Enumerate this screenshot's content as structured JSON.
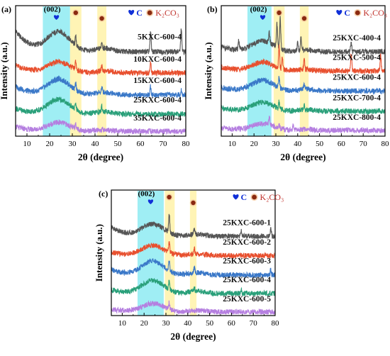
{
  "figure": {
    "legend_c_label": "C",
    "legend_k2co3_label": "K₂CO₃",
    "marker_002_label": "(002)"
  },
  "chart_data": [
    {
      "panel_label": "(a)",
      "type": "line",
      "xlabel": "2θ (degree)",
      "ylabel": "Intensity (a.u.)",
      "xlim": [
        5,
        80
      ],
      "xticks": [
        10,
        20,
        30,
        40,
        50,
        60,
        70,
        80
      ],
      "yticks_shown": false,
      "highlight_bands": [
        {
          "x": [
            17,
            29
          ],
          "color": "#7fe8f0",
          "phase": "C"
        },
        {
          "x": [
            29,
            34
          ],
          "color": "#fff2a8",
          "phase": "K2CO3"
        },
        {
          "x": [
            41,
            45
          ],
          "color": "#fff2a8",
          "phase": "K2CO3"
        }
      ],
      "phase_markers": [
        {
          "x": 23,
          "phase": "C",
          "label": "(002)"
        },
        {
          "x": 31.5,
          "phase": "K2CO3"
        },
        {
          "x": 43,
          "phase": "K2CO3"
        }
      ],
      "series": [
        {
          "name": "5KXC-600-4",
          "color": "#555555",
          "offset": 4.4,
          "hump": 1.0,
          "slope": 1.1,
          "peaks": [
            {
              "x": 31.5,
              "h": 0.45
            },
            {
              "x": 43,
              "h": 0.35
            },
            {
              "x": 64.5,
              "h": 1.0
            },
            {
              "x": 78,
              "h": 1.15
            }
          ]
        },
        {
          "name": "10KXC-600-4",
          "color": "#e8502f",
          "offset": 3.3,
          "hump": 0.55,
          "slope": 0.4,
          "peaks": [
            {
              "x": 31.5,
              "h": 0.4
            },
            {
              "x": 43,
              "h": 0.3
            },
            {
              "x": 64.5,
              "h": 0.5
            }
          ]
        },
        {
          "name": "15KXC-600-4",
          "color": "#3a78c8",
          "offset": 2.15,
          "hump": 0.8,
          "slope": 0.45,
          "peaks": [
            {
              "x": 31.5,
              "h": 0.3
            },
            {
              "x": 43,
              "h": 0.25
            },
            {
              "x": 64.5,
              "h": 0.45
            },
            {
              "x": 78,
              "h": 0.3
            }
          ]
        },
        {
          "name": "25KXC-600-4",
          "color": "#2aa07a",
          "offset": 1.15,
          "hump": 0.75,
          "slope": 0.3,
          "peaks": [
            {
              "x": 31.5,
              "h": 0.3
            },
            {
              "x": 43,
              "h": 0.25
            }
          ]
        },
        {
          "name": "35KXC-600-4",
          "color": "#b57fe0",
          "offset": 0.25,
          "hump": 0.45,
          "slope": 0.25,
          "peaks": [
            {
              "x": 31.5,
              "h": 0.3
            }
          ]
        }
      ]
    },
    {
      "panel_label": "(b)",
      "type": "line",
      "xlabel": "2θ (degree)",
      "ylabel": "Intensity (a.u.)",
      "xlim": [
        5,
        80
      ],
      "xticks": [
        10,
        20,
        30,
        40,
        50,
        60,
        70,
        80
      ],
      "yticks_shown": false,
      "highlight_bands": [
        {
          "x": [
            17,
            28
          ],
          "color": "#7fe8f0",
          "phase": "C"
        },
        {
          "x": [
            29,
            34
          ],
          "color": "#fff2a8",
          "phase": "K2CO3"
        },
        {
          "x": [
            41,
            45
          ],
          "color": "#fff2a8",
          "phase": "K2CO3"
        }
      ],
      "phase_markers": [
        {
          "x": 24,
          "phase": "C",
          "label": "(002)"
        },
        {
          "x": 31.5,
          "phase": "K2CO3"
        },
        {
          "x": 43,
          "phase": "K2CO3"
        }
      ],
      "series": [
        {
          "name": "25KXC-400-4",
          "color": "#555555",
          "offset": 4.4,
          "hump": 0.55,
          "slope": 0.25,
          "peaks": [
            {
              "x": 13,
              "h": 0.5
            },
            {
              "x": 27,
              "h": 0.6
            },
            {
              "x": 30.5,
              "h": 1.2
            },
            {
              "x": 32,
              "h": 1.6
            },
            {
              "x": 40,
              "h": 0.5
            },
            {
              "x": 41.5,
              "h": 0.6
            },
            {
              "x": 64.5,
              "h": 0.5
            }
          ]
        },
        {
          "name": "25KXC-500-4",
          "color": "#e8502f",
          "offset": 3.4,
          "hump": 0.45,
          "slope": 0.2,
          "peaks": [
            {
              "x": 31.5,
              "h": 1.1
            },
            {
              "x": 33,
              "h": 0.6
            },
            {
              "x": 43,
              "h": 0.5
            },
            {
              "x": 64.5,
              "h": 0.9
            },
            {
              "x": 78,
              "h": 0.8
            }
          ]
        },
        {
          "name": "25KXC-600-4",
          "color": "#3a78c8",
          "offset": 2.35,
          "hump": 0.55,
          "slope": 0.2,
          "peaks": [
            {
              "x": 31.5,
              "h": 0.5
            },
            {
              "x": 43,
              "h": 0.3
            }
          ]
        },
        {
          "name": "25KXC-700-4",
          "color": "#2aa07a",
          "offset": 1.3,
          "hump": 0.45,
          "slope": 0.2,
          "peaks": [
            {
              "x": 31.5,
              "h": 0.35
            },
            {
              "x": 43,
              "h": 0.25
            }
          ]
        },
        {
          "name": "25KXC-800-4",
          "color": "#b57fe0",
          "offset": 0.3,
          "hump": 0.35,
          "slope": 0.15,
          "peaks": [
            {
              "x": 27,
              "h": 0.45
            },
            {
              "x": 31.5,
              "h": 0.2
            },
            {
              "x": 38,
              "h": 0.25
            }
          ]
        }
      ]
    },
    {
      "panel_label": "(c)",
      "type": "line",
      "xlabel": "2θ (degree)",
      "ylabel": "Intensity (a.u.)",
      "xlim": [
        5,
        80
      ],
      "xticks": [
        10,
        20,
        30,
        40,
        50,
        60,
        70,
        80
      ],
      "yticks_shown": false,
      "highlight_bands": [
        {
          "x": [
            17,
            29
          ],
          "color": "#7fe8f0",
          "phase": "C"
        },
        {
          "x": [
            29.5,
            34
          ],
          "color": "#fff2a8",
          "phase": "K2CO3"
        },
        {
          "x": [
            41,
            44
          ],
          "color": "#fff2a8",
          "phase": "K2CO3"
        }
      ],
      "phase_markers": [
        {
          "x": 23,
          "phase": "C",
          "label": "(002)"
        },
        {
          "x": 31.5,
          "phase": "K2CO3"
        },
        {
          "x": 42.5,
          "phase": "K2CO3"
        }
      ],
      "series": [
        {
          "name": "25KXC-600-1",
          "color": "#555555",
          "offset": 4.3,
          "hump": 0.65,
          "slope": 0.5,
          "peaks": [
            {
              "x": 31.5,
              "h": 1.0
            },
            {
              "x": 43,
              "h": 0.3
            },
            {
              "x": 64.5,
              "h": 0.3
            },
            {
              "x": 78,
              "h": 0.4
            }
          ]
        },
        {
          "name": "25KXC-600-2",
          "color": "#e8502f",
          "offset": 3.25,
          "hump": 0.55,
          "slope": 0.2,
          "peaks": [
            {
              "x": 31.5,
              "h": 0.6
            },
            {
              "x": 43,
              "h": 0.3
            }
          ]
        },
        {
          "name": "25KXC-600-3",
          "color": "#3a78c8",
          "offset": 2.2,
          "hump": 0.75,
          "slope": 0.3,
          "peaks": [
            {
              "x": 31.5,
              "h": 0.5
            },
            {
              "x": 43,
              "h": 0.25
            },
            {
              "x": 78,
              "h": 0.3
            }
          ]
        },
        {
          "name": "25KXC-600-4",
          "color": "#2aa07a",
          "offset": 1.2,
          "hump": 0.7,
          "slope": 0.2,
          "peaks": [
            {
              "x": 31.5,
              "h": 0.45
            },
            {
              "x": 43,
              "h": 0.2
            },
            {
              "x": 64.5,
              "h": 0.25
            }
          ]
        },
        {
          "name": "25KXC-600-5",
          "color": "#b57fe0",
          "offset": 0.2,
          "hump": 0.45,
          "slope": 0.15,
          "peaks": [
            {
              "x": 31.5,
              "h": 0.35
            }
          ]
        }
      ]
    }
  ]
}
